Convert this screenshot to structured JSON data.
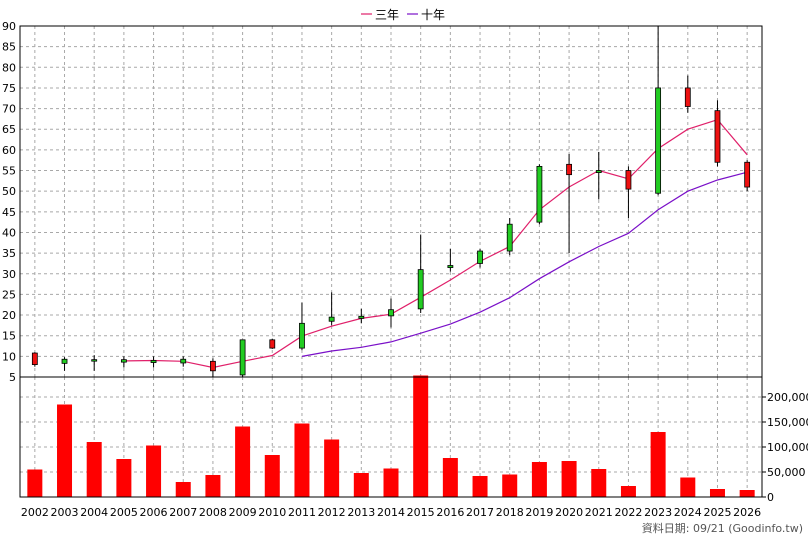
{
  "chart_data": {
    "type": "candlestick",
    "legend": [
      {
        "name": "三年",
        "color": "#e0206a"
      },
      {
        "name": "十年",
        "color": "#7a10c8"
      }
    ],
    "categories": [
      "2002",
      "2003",
      "2004",
      "2005",
      "2006",
      "2007",
      "2008",
      "2009",
      "2010",
      "2011",
      "2012",
      "2013",
      "2014",
      "2015",
      "2016",
      "2017",
      "2018",
      "2019",
      "2020",
      "2021",
      "2022",
      "2023",
      "2024",
      "2025",
      "2026"
    ],
    "price_axis": {
      "ylim": [
        5,
        90
      ],
      "ticks": [
        5,
        10,
        15,
        20,
        25,
        30,
        35,
        40,
        45,
        50,
        55,
        60,
        65,
        70,
        75,
        80,
        85,
        90
      ]
    },
    "volume_axis": {
      "ylim": [
        0,
        240000
      ],
      "ticks": [
        0,
        50000,
        100000,
        150000,
        200000
      ],
      "tick_labels": [
        "0",
        "50,000",
        "100,000",
        "150,000",
        "200,000"
      ]
    },
    "candles": [
      {
        "open": 8,
        "close": 10.8,
        "high": 11,
        "low": 7.5
      },
      {
        "open": 9.3,
        "close": 8.3,
        "high": 9.8,
        "low": 6.5
      },
      {
        "open": 9.2,
        "close": 9.0,
        "high": 10.3,
        "low": 6.5
      },
      {
        "open": 9.2,
        "close": 8.6,
        "high": 10.0,
        "low": 7.3
      },
      {
        "open": 9.0,
        "close": 8.5,
        "high": 10.0,
        "low": 7.3
      },
      {
        "open": 9.3,
        "close": 8.4,
        "high": 10.0,
        "low": 7.5
      },
      {
        "open": 6.5,
        "close": 8.8,
        "high": 9.5,
        "low": 5.0
      },
      {
        "open": 14.0,
        "close": 5.5,
        "high": 14.0,
        "low": 5.0
      },
      {
        "open": 12.0,
        "close": 14.0,
        "high": 14.2,
        "low": 11.8
      },
      {
        "open": 18.0,
        "close": 12.0,
        "high": 23.0,
        "low": 11.5
      },
      {
        "open": 19.5,
        "close": 18.5,
        "high": 25.5,
        "low": 17.5
      },
      {
        "open": 19.7,
        "close": 19.2,
        "high": 21.5,
        "low": 18.0
      },
      {
        "open": 21.3,
        "close": 19.8,
        "high": 24.0,
        "low": 17.0
      },
      {
        "open": 31.0,
        "close": 21.5,
        "high": 39.5,
        "low": 20.5
      },
      {
        "open": 32.0,
        "close": 31.5,
        "high": 36.0,
        "low": 30.5
      },
      {
        "open": 35.5,
        "close": 32.5,
        "high": 36.0,
        "low": 31.5
      },
      {
        "open": 42.0,
        "close": 35.5,
        "high": 43.5,
        "low": 34.5
      },
      {
        "open": 56.0,
        "close": 42.5,
        "high": 56.5,
        "low": 42.0
      },
      {
        "open": 54.0,
        "close": 56.5,
        "high": 59.0,
        "low": 35.0
      },
      {
        "open": 55.0,
        "close": 54.5,
        "high": 59.5,
        "low": 48.0
      },
      {
        "open": 50.5,
        "close": 55.0,
        "high": 56.0,
        "low": 43.5
      },
      {
        "open": 75.0,
        "close": 49.5,
        "high": 90.0,
        "low": 49.0
      },
      {
        "open": 70.5,
        "close": 75.0,
        "high": 78.0,
        "low": 69.0
      },
      {
        "open": 57.0,
        "close": 69.5,
        "high": 72.0,
        "low": 56.0
      },
      {
        "open": 51.0,
        "close": 57.0,
        "high": 57.5,
        "low": 50.0
      }
    ],
    "ma_3y": [
      null,
      null,
      null,
      8.9,
      9.0,
      8.8,
      7.3,
      8.8,
      10.2,
      14.9,
      17.3,
      19.2,
      20.2,
      24.3,
      28.5,
      33.0,
      36.6,
      45.5,
      51.0,
      55.0,
      53.0,
      60.3,
      65.0,
      67.3,
      58.8
    ],
    "ma_10y": [
      null,
      null,
      null,
      null,
      null,
      null,
      null,
      null,
      null,
      10.0,
      11.3,
      12.2,
      13.5,
      15.6,
      17.8,
      20.7,
      24.2,
      28.8,
      32.9,
      36.6,
      39.8,
      45.5,
      50.0,
      52.7,
      54.6
    ],
    "volume": [
      55000,
      185000,
      110000,
      76000,
      103000,
      30000,
      44000,
      141000,
      84000,
      147000,
      115000,
      48000,
      57000,
      243000,
      78000,
      42000,
      45000,
      70000,
      72000,
      56000,
      22000,
      130000,
      39000,
      16000,
      14000
    ],
    "source_note": "資料日期: 09/21  (Goodinfo.tw)"
  }
}
